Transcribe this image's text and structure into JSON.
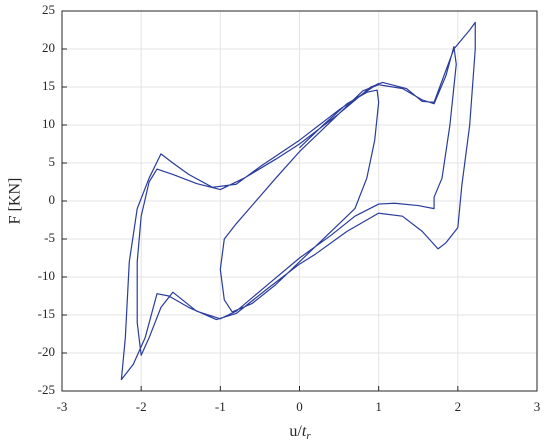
{
  "chart_data": {
    "type": "line",
    "xlabel": [
      "u/",
      "t",
      "r"
    ],
    "ylabel": "F [KN]",
    "color": "#2a3c9c",
    "xlim": [
      -3,
      3
    ],
    "xticks": [
      -3,
      -2,
      -1,
      0,
      1,
      2,
      3
    ],
    "ylim": [
      -25,
      25
    ],
    "yticks": [
      -25,
      -20,
      -15,
      -10,
      -5,
      0,
      5,
      10,
      15,
      20,
      25
    ],
    "grid": true,
    "x": [
      0,
      0.3,
      0.6,
      0.85,
      0.98,
      1.0,
      0.95,
      0.85,
      0.7,
      0.5,
      0.2,
      0,
      -0.3,
      -0.6,
      -0.85,
      -0.95,
      -1.0,
      -0.95,
      -0.8,
      -0.55,
      -0.3,
      0,
      0.4,
      0.8,
      1.0,
      1.3,
      1.55,
      1.7,
      1.85,
      1.95,
      1.98,
      1.9,
      1.8,
      1.7,
      1.7,
      1.5,
      1.2,
      1.0,
      0.7,
      0.4,
      0,
      -0.4,
      -0.8,
      -1.0,
      -1.3,
      -1.6,
      -1.75,
      -1.9,
      -2.0,
      -2.05,
      -2.05,
      -2.0,
      -1.9,
      -1.8,
      -1.6,
      -1.3,
      -1.0,
      -0.7,
      -0.3,
      0,
      0.5,
      0.9,
      1.05,
      1.35,
      1.55,
      1.7,
      1.95,
      2.15,
      2.22,
      2.22,
      2.15,
      2.05,
      2.0,
      1.85,
      1.75,
      1.55,
      1.3,
      1.0,
      0.6,
      0.2,
      0,
      -0.4,
      -0.8,
      -1.05,
      -1.4,
      -1.65,
      -1.8,
      -1.95,
      -2.1,
      -2.25,
      -2.2,
      -2.15,
      -2.05,
      -1.9,
      -1.75,
      -1.6,
      -1.4,
      -1.1,
      -0.8,
      -0.5,
      0,
      0.5,
      1.0
    ],
    "values": [
      7,
      10,
      12.8,
      14.3,
      14.6,
      13,
      8,
      3,
      -1,
      -3,
      -6,
      -8,
      -11,
      -13.5,
      -14.6,
      -13,
      -9,
      -5,
      -3,
      0,
      3,
      6.5,
      10.5,
      14.5,
      15.3,
      14.8,
      13.3,
      12.8,
      16.5,
      20.3,
      18,
      10,
      3,
      0.5,
      -1,
      -0.6,
      -0.3,
      -0.4,
      -2,
      -4.5,
      -7.5,
      -11,
      -14.5,
      -15.5,
      -14.5,
      -12,
      -14,
      -18,
      -20.3,
      -16,
      -8,
      -2,
      2.5,
      4.2,
      3.5,
      2.3,
      1.5,
      3,
      5.5,
      7.5,
      11.5,
      15,
      15.6,
      14.8,
      13.1,
      13,
      20,
      22.5,
      23.5,
      20,
      10,
      2,
      -3.5,
      -5.5,
      -6.3,
      -4,
      -2,
      -1.6,
      -4,
      -7,
      -8.3,
      -11.5,
      -14.8,
      -15.6,
      -14,
      -12.5,
      -12.2,
      -18,
      -21.5,
      -23.5,
      -18,
      -8,
      -1,
      3,
      6.2,
      5,
      3.5,
      1.8,
      2.2,
      4.5,
      8,
      12,
      15.5
    ]
  }
}
